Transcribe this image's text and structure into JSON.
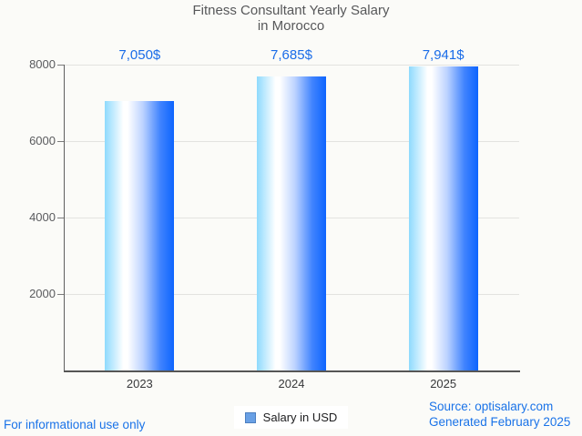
{
  "title": {
    "line1": "Fitness Consultant Yearly Salary",
    "line2": "in Morocco"
  },
  "chart_data": {
    "type": "bar",
    "title": "Fitness Consultant Yearly Salary in Morocco",
    "categories": [
      "2023",
      "2024",
      "2025"
    ],
    "values": [
      7050,
      7685,
      7941
    ],
    "value_labels": [
      "7,050$",
      "7,685$",
      "7,941$"
    ],
    "xlabel": "",
    "ylabel": "",
    "ylim": [
      0,
      8000
    ],
    "yticks": [
      2000,
      4000,
      6000,
      8000
    ],
    "grid": true,
    "legend_position": "bottom",
    "legend_label": "Salary in USD",
    "bar_gradient_stops": [
      [
        "#8edafd",
        "0%"
      ],
      [
        "#ffffff",
        "27%"
      ],
      [
        "#ffffff",
        "33%"
      ],
      [
        "#bdd3ff",
        "55%"
      ],
      [
        "#4184fe",
        "80%"
      ],
      [
        "#0d64fe",
        "100%"
      ]
    ]
  },
  "legend": {
    "label": "Salary in USD",
    "swatch_color": "#69a0e5",
    "swatch_border": "#4c7fc0"
  },
  "footer": {
    "left": "For informational use only",
    "source": "Source: optisalary.com",
    "generated": "Generated February 2025"
  },
  "colors": {
    "background": "#fbfbf8",
    "title_text": "#57585a",
    "value_label_blue": "#1a6ce8",
    "footer_blue": "#1a73e8",
    "gridline": "#e3e3e0",
    "axis_line": "#565656"
  }
}
